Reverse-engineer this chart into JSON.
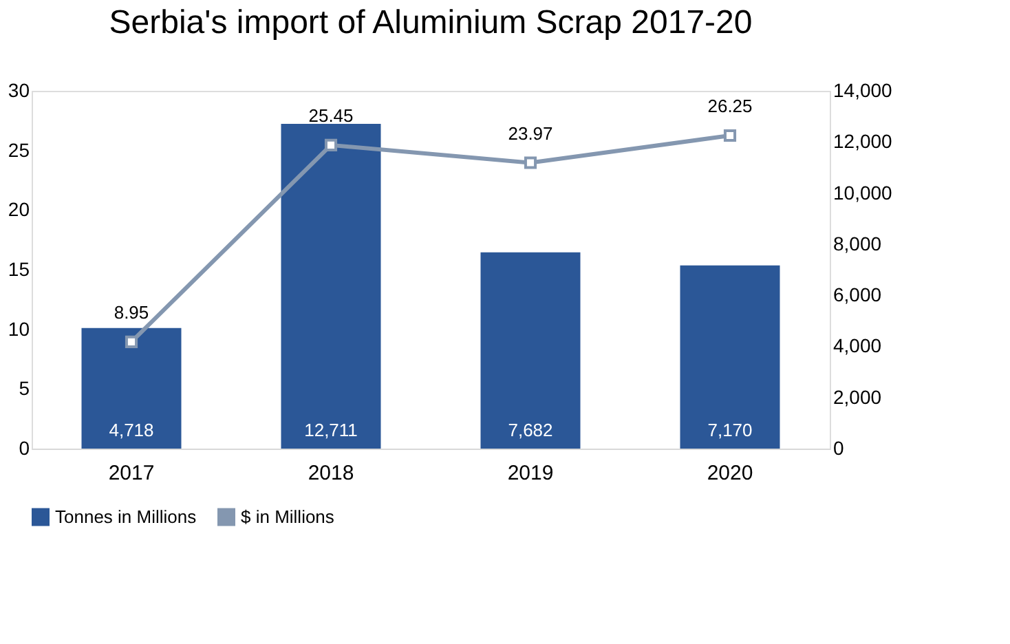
{
  "chart_data": {
    "type": "bar",
    "title": "Serbia's import of Aluminium Scrap 2017-20",
    "categories": [
      "2017",
      "2018",
      "2019",
      "2020"
    ],
    "series": [
      {
        "name": "Tonnes in Millions",
        "axis": "y2",
        "color": "#2b5797",
        "values": [
          4718,
          12711,
          7682,
          7170
        ],
        "value_labels": [
          "4,718",
          "12,711",
          "7,682",
          "7,170"
        ]
      },
      {
        "name": "$ in Millions",
        "type": "line",
        "axis": "y",
        "color": "#8497b0",
        "marker": "square",
        "values": [
          8.95,
          25.45,
          23.97,
          26.25
        ],
        "value_labels": [
          "8.95",
          "25.45",
          "23.97",
          "26.25"
        ]
      }
    ],
    "ylim": [
      0,
      30
    ],
    "yticks": [
      0,
      5,
      10,
      15,
      20,
      25,
      30
    ],
    "y2lim": [
      0,
      14000
    ],
    "y2ticks": [
      0,
      {
        "value": 2000,
        "label": "2,000"
      },
      {
        "value": 4000,
        "label": "4,000"
      },
      {
        "value": 6000,
        "label": "6,000"
      },
      {
        "value": 8000,
        "label": "8,000"
      },
      {
        "value": 10000,
        "label": "10,000"
      },
      {
        "value": 12000,
        "label": "12,000"
      },
      {
        "value": 14000,
        "label": "14,000"
      }
    ],
    "legend": "bottom",
    "grid": false
  }
}
